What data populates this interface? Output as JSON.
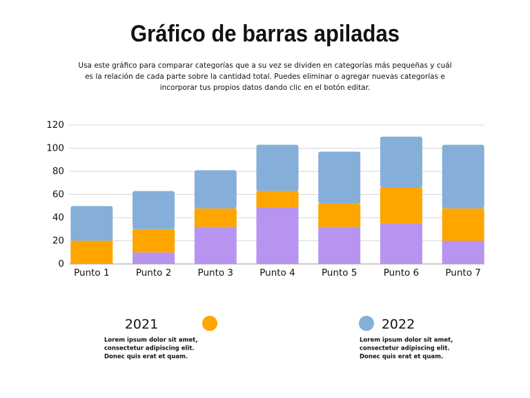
{
  "chart_data": {
    "type": "stacked_bar",
    "title": "Gráfico de barras apiladas",
    "subtitle": [
      "Usa este gráfico para comparar categorías que a su vez se dividen en categorías más pequeñas y cuál",
      "es la relación de cada parte sobre la cantidad total. Puedes eliminar o agregar nuevas categorías e",
      "incorporar tus propios datos dando clic en el botón editar."
    ],
    "categories": [
      "Punto 1",
      "Punto 2",
      "Punto 3",
      "Punto 4",
      "Punto 5",
      "Punto 6",
      "Punto 7"
    ],
    "series": [
      {
        "color": "#b794f0",
        "values": [
          0,
          10,
          32,
          49,
          32,
          35,
          20
        ]
      },
      {
        "name": "2021",
        "color": "#ffa500",
        "values": [
          20,
          20,
          16,
          14,
          20,
          31,
          28
        ],
        "description": [
          "Lorem ipsum dolor sit amet,",
          "consectetur adipiscing elit.",
          "Donec quis erat et quam."
        ]
      },
      {
        "name": "2022",
        "color": "#85afd8",
        "values": [
          30,
          33,
          33,
          40,
          45,
          44,
          55
        ],
        "description": [
          "Lorem ipsum dolor sit amet,",
          "consectetur adipiscing elit.",
          "Donec quis erat et quam."
        ]
      }
    ],
    "ylim": [
      0,
      120
    ],
    "yticks": [
      0,
      20,
      40,
      60,
      80,
      100,
      120
    ],
    "grid": true
  }
}
